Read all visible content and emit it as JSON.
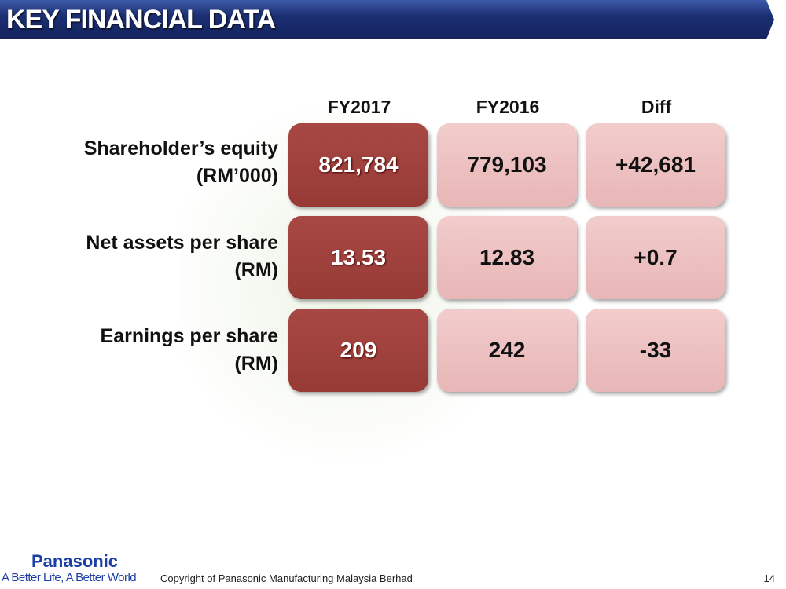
{
  "title": "KEY FINANCIAL DATA",
  "columns": [
    "FY2017",
    "FY2016",
    "Diff"
  ],
  "rows": [
    {
      "label1": "Shareholder’s equity",
      "label2": "(RM’000)",
      "values": [
        "821,784",
        "779,103",
        "+42,681"
      ]
    },
    {
      "label1": "Net assets per share",
      "label2": "(RM)",
      "values": [
        "13.53",
        "12.83",
        "+0.7"
      ]
    },
    {
      "label1": "Earnings per share",
      "label2": "(RM)",
      "values": [
        "209",
        "242",
        "-33"
      ]
    }
  ],
  "footer": {
    "brand": "Panasonic",
    "tagline": "A Better Life, A Better World",
    "copyright": "Copyright of Panasonic Manufacturing Malaysia Berhad",
    "page": "14"
  }
}
